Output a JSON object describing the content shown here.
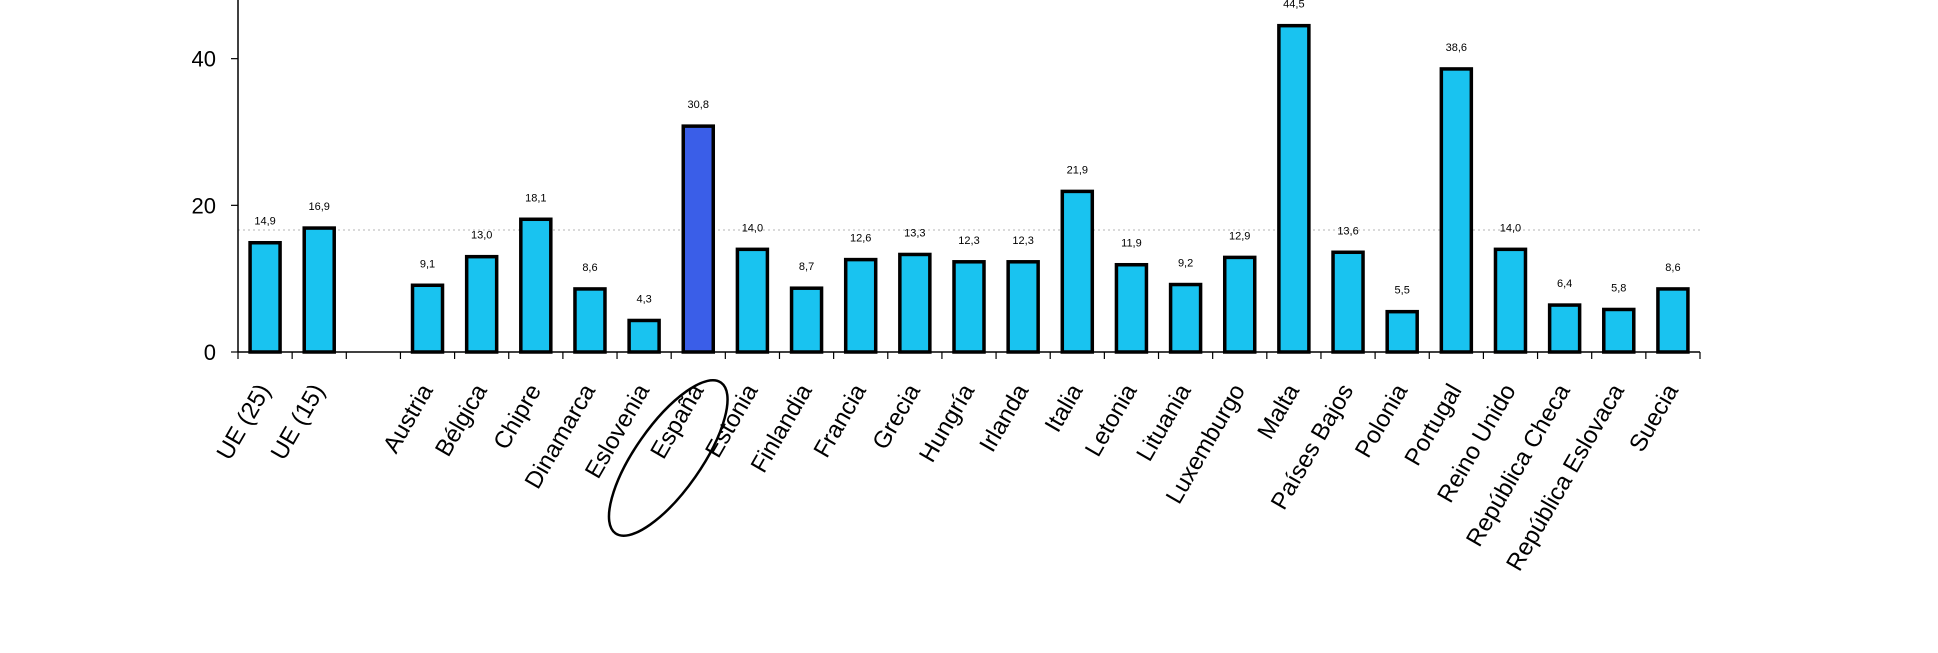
{
  "chart_data": {
    "type": "bar",
    "title": "",
    "xlabel": "",
    "ylabel": "",
    "ylim": [
      0,
      48
    ],
    "yticks": [
      "0",
      "20",
      "40"
    ],
    "grid": "dotted horizontal line at 20",
    "highlight_category": "España",
    "colors": {
      "bar": "#19c3f0",
      "highlight": "#3a5ee8",
      "outline": "#000000",
      "grid": "#b5b5b5"
    },
    "categories": [
      "UE (25)",
      "UE (15)",
      "",
      "Austria",
      "Bélgica",
      "Chipre",
      "Dinamarca",
      "Eslovenia",
      "España",
      "Estonia",
      "Finlandia",
      "Francia",
      "Grecia",
      "Hungría",
      "Irlanda",
      "Italia",
      "Letonia",
      "Lituania",
      "Luxemburgo",
      "Malta",
      "Países Bajos",
      "Polonia",
      "Portugal",
      "Reino Unido",
      "República Checa",
      "República Eslovaca",
      "Suecia"
    ],
    "values": [
      14.9,
      16.9,
      null,
      9.1,
      13.0,
      18.1,
      8.6,
      4.3,
      30.8,
      14.0,
      8.7,
      12.6,
      13.3,
      12.3,
      12.3,
      21.9,
      11.9,
      9.2,
      12.9,
      44.5,
      13.6,
      5.5,
      38.6,
      14.0,
      6.4,
      5.8,
      8.6
    ],
    "labels": [
      "14,9",
      "16,9",
      "",
      "9,1",
      "13,0",
      "18,1",
      "8,6",
      "4,3",
      "30,8",
      "14,0",
      "8,7",
      "12,6",
      "13,3",
      "12,3",
      "12,3",
      "21,9",
      "11,9",
      "9,2",
      "12,9",
      "44,5",
      "13,6",
      "5,5",
      "38,6",
      "14,0",
      "6,4",
      "5,8",
      "8,6"
    ]
  }
}
